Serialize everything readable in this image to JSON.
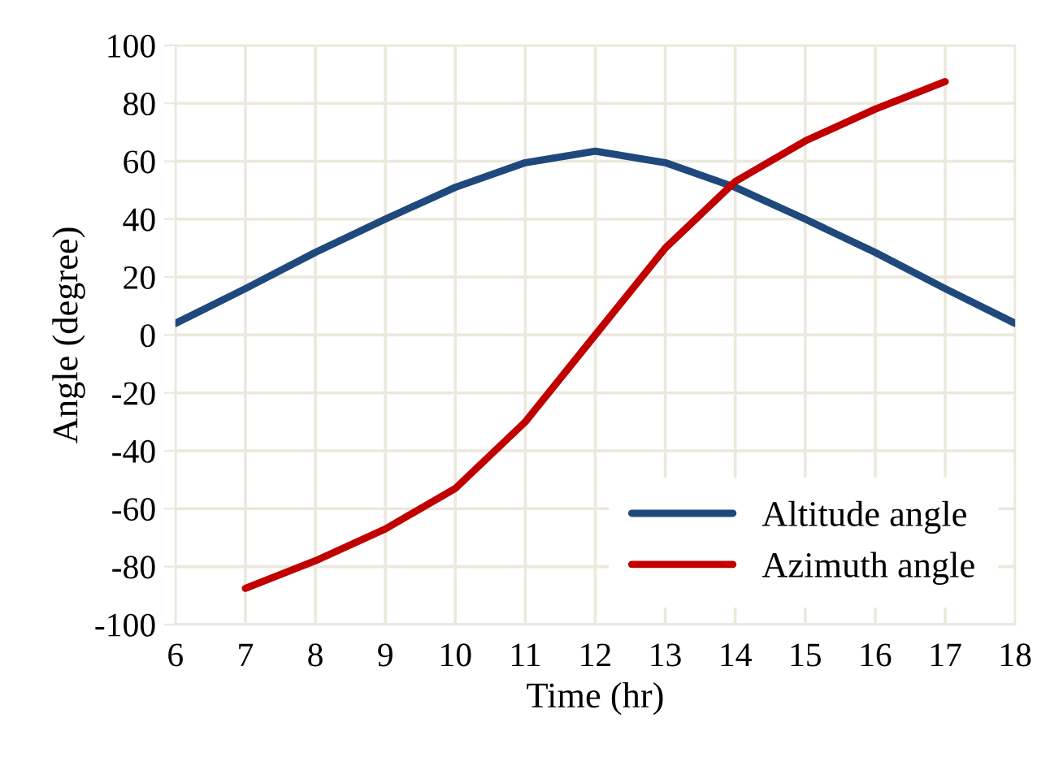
{
  "chart_data": {
    "type": "line",
    "xlabel": "Time (hr)",
    "ylabel": "Angle (degree)",
    "xlim": [
      6,
      18
    ],
    "xticks": [
      6,
      7,
      8,
      9,
      10,
      11,
      12,
      13,
      14,
      15,
      16,
      17,
      18
    ],
    "ylim": [
      -100,
      100
    ],
    "yticks": [
      -100,
      -80,
      -60,
      -40,
      -20,
      0,
      20,
      40,
      60,
      80,
      100
    ],
    "grid": true,
    "legend": "bottom right",
    "marker": "none",
    "line_style": "solid",
    "series": [
      {
        "name": "Altitude angle",
        "color": "#1f497d",
        "x": [
          6,
          7,
          8,
          9,
          10,
          11,
          12,
          13,
          14,
          15,
          16,
          17,
          18
        ],
        "values": [
          4,
          16,
          28.5,
          40,
          51,
          59.5,
          63.5,
          59.5,
          51,
          40,
          28.5,
          16,
          4
        ]
      },
      {
        "name": "Azimuth angle",
        "color": "#c00000",
        "x": [
          7,
          8,
          9,
          10,
          11,
          12,
          13,
          14,
          15,
          16,
          17
        ],
        "values": [
          -87.5,
          -78,
          -67,
          -53,
          -30,
          0,
          30,
          53,
          67,
          78,
          87.5
        ]
      }
    ]
  }
}
